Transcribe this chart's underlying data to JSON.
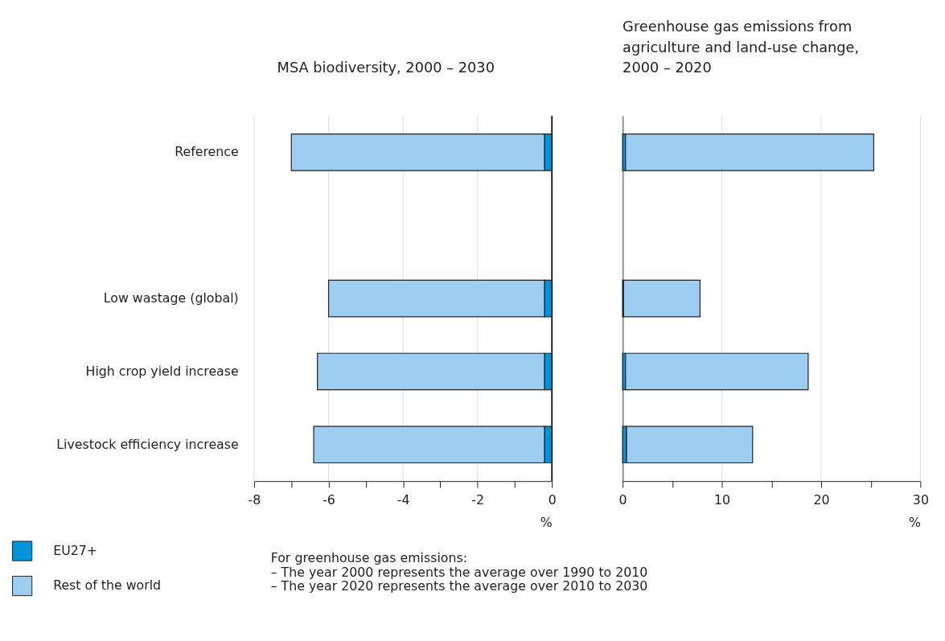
{
  "chart_data": [
    {
      "type": "bar",
      "orientation": "horizontal",
      "stacked": true,
      "title": "MSA biodiversity, 2000 – 2030",
      "xlabel": "%",
      "categories": [
        "Reference",
        null,
        "Low wastage (global)",
        "High crop yield increase",
        "Livestock efficiency increase"
      ],
      "series": [
        {
          "name": "EU27+",
          "color": "#0095da",
          "values": [
            -0.2,
            null,
            -0.2,
            -0.2,
            -0.2
          ]
        },
        {
          "name": "Rest of the world",
          "color": "#9dcdf0",
          "values": [
            -6.8,
            null,
            -5.8,
            -6.1,
            -6.2
          ]
        }
      ],
      "xlim": [
        -8,
        0
      ],
      "xticks": [
        -8,
        {
          "value": -7,
          "label": null
        },
        -6,
        {
          "value": -5,
          "label": null
        },
        -4,
        {
          "value": -3,
          "label": null
        },
        -2,
        {
          "value": -1,
          "label": null
        },
        0
      ],
      "grid": "x",
      "legend": "bottom left",
      "ref_lines": [
        {
          "axis": "x",
          "value": 0,
          "color": "#222222"
        }
      ]
    },
    {
      "type": "bar",
      "orientation": "horizontal",
      "stacked": true,
      "title": "Greenhouse gas emissions from agriculture and land-use change, 2000 – 2020",
      "xlabel": "%",
      "categories": [
        null,
        null,
        null,
        null,
        null
      ],
      "series": [
        {
          "name": "EU27+",
          "color": "#0095da",
          "values": [
            0.3,
            null,
            0.1,
            0.3,
            0.4
          ]
        },
        {
          "name": "Rest of the world",
          "color": "#9dcdf0",
          "values": [
            25.0,
            null,
            7.7,
            18.4,
            12.7
          ]
        }
      ],
      "xlim": [
        0,
        30
      ],
      "xticks": [
        0,
        {
          "value": 5,
          "label": null
        },
        10,
        {
          "value": 15,
          "label": null
        },
        20,
        {
          "value": 25,
          "label": null
        },
        30
      ],
      "grid": "x",
      "tick_labels": "x",
      "annotations": [
        "For greenhouse gas emissions:",
        "– The year 2000 represents the average over 1990 to 2010",
        "– The year 2020 represents the average over 2010 to 2030"
      ]
    }
  ]
}
